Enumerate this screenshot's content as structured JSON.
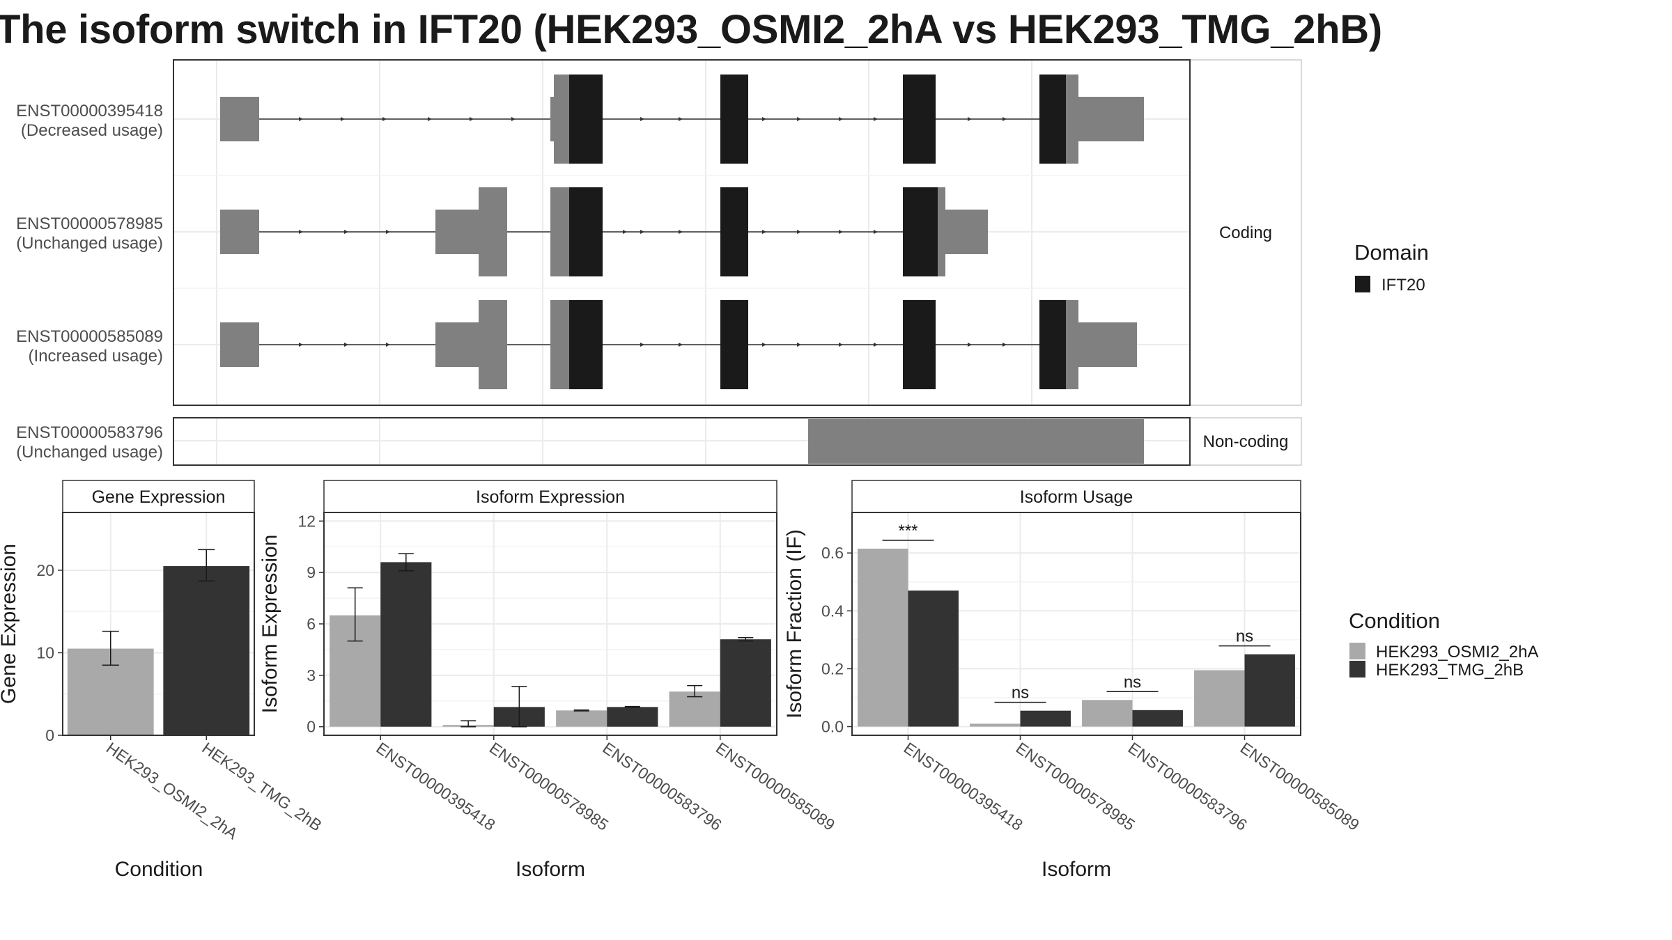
{
  "title": "The isoform switch in IFT20 (HEK293_OSMI2_2hA vs HEK293_TMG_2hB)",
  "colors": {
    "domain": "#1a1a1a",
    "utr": "#808080",
    "condition_a": "#a9a9a9",
    "condition_b": "#333333",
    "grid": "#ebebeb",
    "panel_border": "#333333",
    "strip_bg": "#ffffff"
  },
  "structure": {
    "facets": [
      {
        "label": "Coding"
      },
      {
        "label": "Non-coding"
      }
    ],
    "isoforms": [
      {
        "id": "ENST00000395418",
        "usage": "(Decreased usage)",
        "facet": "Coding"
      },
      {
        "id": "ENST00000578985",
        "usage": "(Unchanged usage)",
        "facet": "Coding"
      },
      {
        "id": "ENST00000585089",
        "usage": "(Increased usage)",
        "facet": "Coding"
      },
      {
        "id": "ENST00000583796",
        "usage": "(Unchanged usage)",
        "facet": "Non-coding"
      }
    ],
    "legend": {
      "title": "Domain",
      "items": [
        {
          "label": "IFT20",
          "color": "#1a1a1a"
        }
      ]
    }
  },
  "condition_legend": {
    "title": "Condition",
    "items": [
      {
        "label": "HEK293_OSMI2_2hA",
        "color": "#a9a9a9"
      },
      {
        "label": "HEK293_TMG_2hB",
        "color": "#333333"
      }
    ]
  },
  "chart_data": [
    {
      "type": "bar",
      "title": "Gene Expression",
      "xlabel": "Condition",
      "ylabel": "Gene Expression",
      "ylim": [
        0,
        27
      ],
      "yticks": [
        0,
        10,
        20
      ],
      "categories": [
        "HEK293_OSMI2_2hA",
        "HEK293_TMG_2hB"
      ],
      "values": [
        10.5,
        20.5
      ],
      "error_low": [
        8.5,
        18.7
      ],
      "error_high": [
        12.6,
        22.5
      ],
      "colors": [
        "#a9a9a9",
        "#333333"
      ]
    },
    {
      "type": "bar",
      "title": "Isoform Expression",
      "xlabel": "Isoform",
      "ylabel": "Isoform Expression",
      "ylim": [
        -0.5,
        12.5
      ],
      "yticks": [
        0,
        3,
        6,
        9,
        12
      ],
      "categories": [
        "ENST00000395418",
        "ENST00000578985",
        "ENST00000583796",
        "ENST00000585089"
      ],
      "series": [
        {
          "name": "HEK293_OSMI2_2hA",
          "values": [
            6.5,
            0.1,
            0.95,
            2.05
          ],
          "error_low": [
            5.0,
            0.0,
            0.92,
            1.75
          ],
          "error_high": [
            8.1,
            0.35,
            0.98,
            2.4
          ]
        },
        {
          "name": "HEK293_TMG_2hB",
          "values": [
            9.6,
            1.15,
            1.15,
            5.1
          ],
          "error_low": [
            9.1,
            0.0,
            1.12,
            5.0
          ],
          "error_high": [
            10.1,
            2.35,
            1.18,
            5.2
          ]
        }
      ]
    },
    {
      "type": "bar",
      "title": "Isoform Usage",
      "xlabel": "Isoform",
      "ylabel": "Isoform Fraction (IF)",
      "ylim": [
        -0.03,
        0.74
      ],
      "yticks": [
        0.0,
        0.2,
        0.4,
        0.6
      ],
      "ytick_labels": [
        "0.0",
        "0.2",
        "0.4",
        "0.6"
      ],
      "categories": [
        "ENST00000395418",
        "ENST00000578985",
        "ENST00000583796",
        "ENST00000585089"
      ],
      "series": [
        {
          "name": "HEK293_OSMI2_2hA",
          "values": [
            0.615,
            0.01,
            0.092,
            0.195
          ]
        },
        {
          "name": "HEK293_TMG_2hB",
          "values": [
            0.47,
            0.055,
            0.057,
            0.25
          ]
        }
      ],
      "significance": [
        "***",
        "ns",
        "ns",
        "ns"
      ]
    }
  ]
}
